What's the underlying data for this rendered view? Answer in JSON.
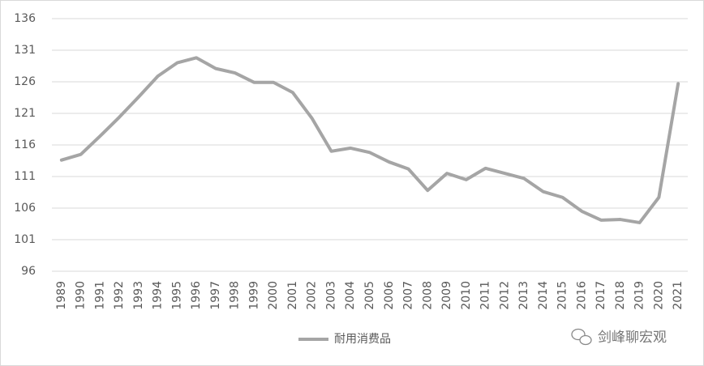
{
  "chart_data": {
    "type": "line",
    "categories": [
      "1989",
      "1990",
      "1991",
      "1992",
      "1993",
      "1994",
      "1995",
      "1996",
      "1997",
      "1998",
      "1999",
      "2000",
      "2001",
      "2002",
      "2003",
      "2004",
      "2005",
      "2006",
      "2007",
      "2008",
      "2009",
      "2010",
      "2011",
      "2012",
      "2013",
      "2014",
      "2015",
      "2016",
      "2017",
      "2018",
      "2019",
      "2020",
      "2021"
    ],
    "series": [
      {
        "name": "耐用消费品",
        "color": "#a5a5a5",
        "values": [
          113.6,
          114.5,
          117.4,
          120.4,
          123.6,
          126.9,
          129.0,
          129.8,
          128.1,
          127.4,
          125.9,
          125.9,
          124.3,
          120.2,
          115.0,
          115.5,
          114.8,
          113.3,
          112.2,
          108.8,
          111.5,
          110.5,
          112.3,
          111.5,
          110.7,
          108.6,
          107.7,
          105.5,
          104.1,
          104.2,
          103.7,
          107.7,
          125.7
        ]
      }
    ],
    "ylim": [
      96,
      136
    ],
    "yticks": [
      96,
      101,
      106,
      111,
      116,
      121,
      126,
      131,
      136
    ],
    "grid": true,
    "legend": "bottom",
    "watermark": "剑峰聊宏观"
  }
}
